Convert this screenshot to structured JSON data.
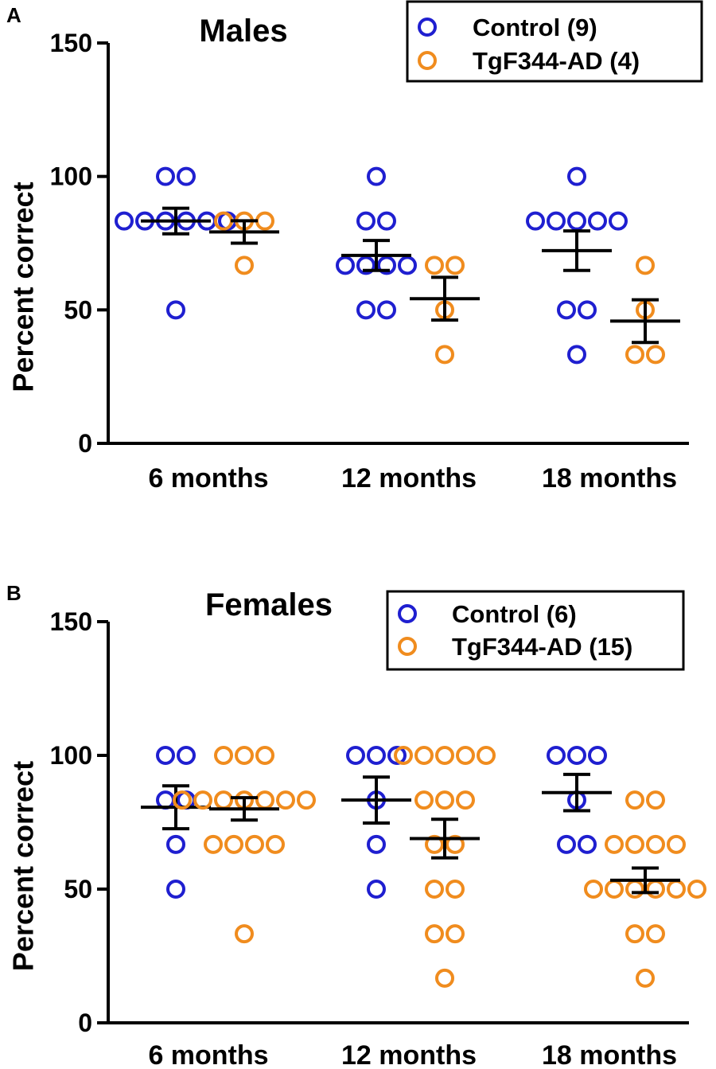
{
  "chart_data": [
    {
      "type": "scatter",
      "panel": "A",
      "title": "Males",
      "xlabel": "",
      "ylabel": "Percent correct",
      "ylim": [
        0,
        150
      ],
      "yticks": [
        0,
        50,
        100,
        150
      ],
      "categories": [
        "6 months",
        "12 months",
        "18 months"
      ],
      "legend_position": "top-right",
      "series": [
        {
          "name": "Control (9)",
          "color": "#1f1fd0",
          "points": [
            [
              100,
              100,
              83.3,
              83.3,
              83.3,
              83.3,
              83.3,
              83.3,
              50
            ],
            [
              100,
              83.3,
              83.3,
              66.7,
              66.7,
              66.7,
              66.7,
              50,
              50
            ],
            [
              100,
              83.3,
              83.3,
              83.3,
              83.3,
              83.3,
              50,
              50,
              33.3
            ]
          ],
          "mean": [
            83.3,
            70.4,
            72.2
          ],
          "sem": [
            4.8,
            5.6,
            7.4
          ]
        },
        {
          "name": "TgF344-AD (4)",
          "color": "#f08c1e",
          "points": [
            [
              83.3,
              83.3,
              83.3,
              66.7
            ],
            [
              66.7,
              66.7,
              50,
              33.3
            ],
            [
              66.7,
              50,
              33.3,
              33.3
            ]
          ],
          "mean": [
            79.2,
            54.2,
            45.8
          ],
          "sem": [
            4.2,
            8.0,
            8.0
          ]
        }
      ]
    },
    {
      "type": "scatter",
      "panel": "B",
      "title": "Females",
      "xlabel": "",
      "ylabel": "Percent correct",
      "ylim": [
        0,
        150
      ],
      "yticks": [
        0,
        50,
        100,
        150
      ],
      "categories": [
        "6 months",
        "12 months",
        "18 months"
      ],
      "legend_position": "top-right",
      "series": [
        {
          "name": "Control (6)",
          "color": "#1f1fd0",
          "points": [
            [
              100,
              100,
              83.3,
              83.3,
              66.7,
              50
            ],
            [
              100,
              100,
              100,
              83.3,
              66.7,
              50
            ],
            [
              100,
              100,
              100,
              83.3,
              66.7,
              66.7
            ]
          ],
          "mean": [
            80.6,
            83.3,
            86.1
          ],
          "sem": [
            8.0,
            8.6,
            6.8
          ]
        },
        {
          "name": "TgF344-AD (15)",
          "color": "#f08c1e",
          "points": [
            [
              100,
              100,
              100,
              83.3,
              83.3,
              83.3,
              83.3,
              83.3,
              83.3,
              83.3,
              66.7,
              66.7,
              66.7,
              66.7,
              33.3
            ],
            [
              100,
              100,
              100,
              100,
              100,
              83.3,
              83.3,
              83.3,
              66.7,
              66.7,
              50,
              50,
              33.3,
              33.3,
              16.7
            ],
            [
              83.3,
              83.3,
              66.7,
              66.7,
              66.7,
              66.7,
              50,
              50,
              50,
              50,
              50,
              50,
              33.3,
              33.3,
              16.7
            ]
          ],
          "mean": [
            80.0,
            68.9,
            53.3
          ],
          "sem": [
            4.2,
            7.2,
            4.6
          ]
        }
      ]
    }
  ]
}
